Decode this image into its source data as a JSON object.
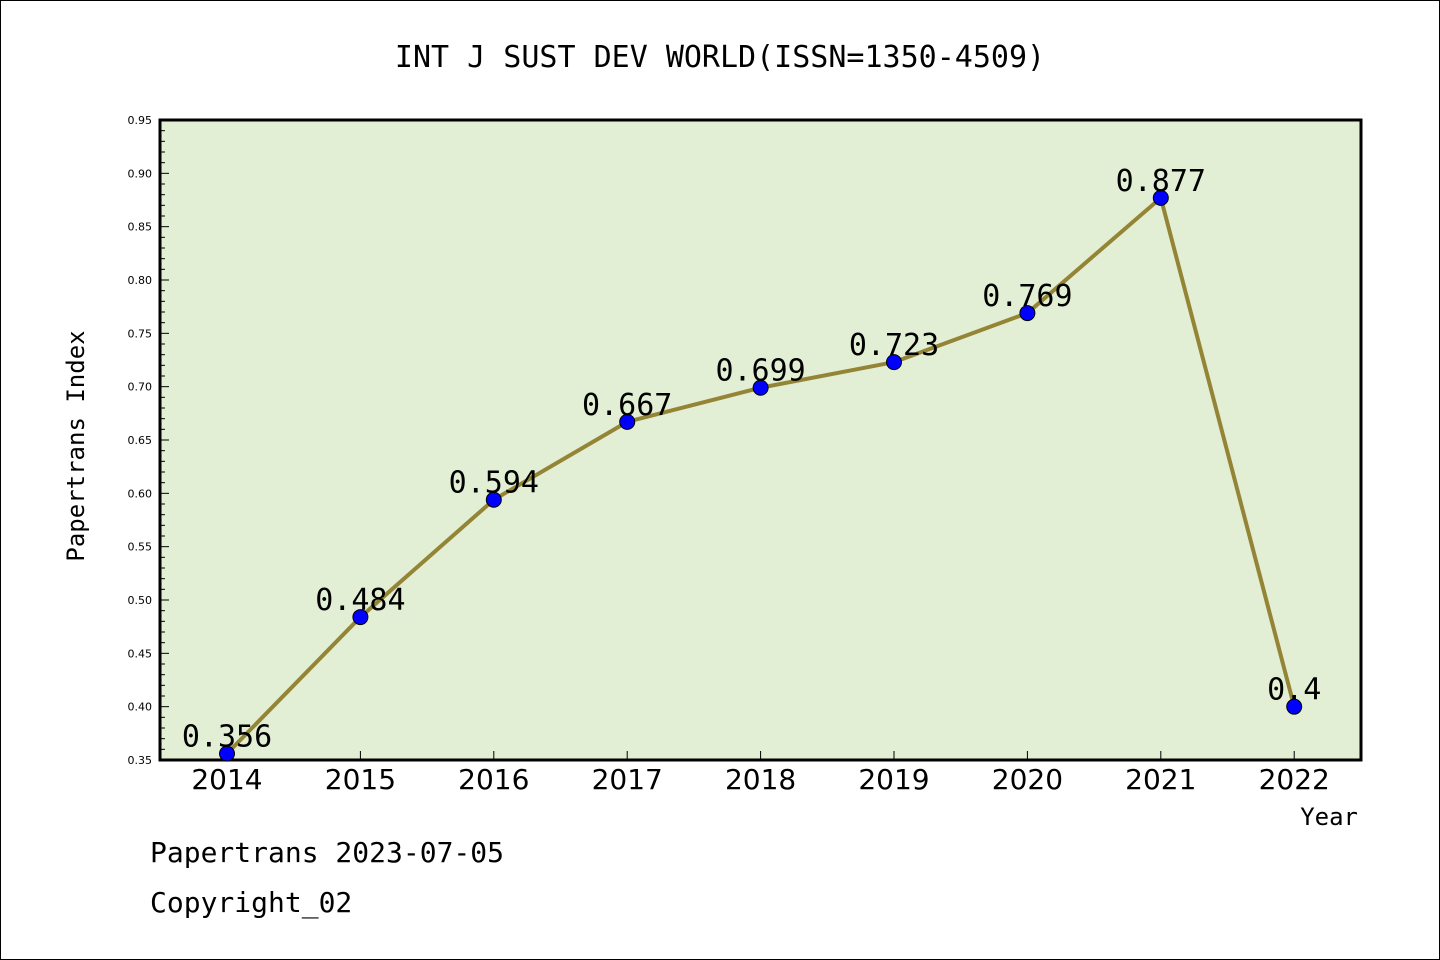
{
  "chart_data": {
    "type": "line",
    "title": "INT J SUST DEV WORLD(ISSN=1350-4509)",
    "xlabel": "Year",
    "ylabel": "Papertrans Index",
    "categories": [
      "2014",
      "2015",
      "2016",
      "2017",
      "2018",
      "2019",
      "2020",
      "2021",
      "2022"
    ],
    "values": [
      0.356,
      0.484,
      0.594,
      0.667,
      0.699,
      0.723,
      0.769,
      0.877,
      0.4
    ],
    "data_labels": [
      "0.356",
      "0.484",
      "0.594",
      "0.667",
      "0.699",
      "0.723",
      "0.769",
      "0.877",
      "0.4"
    ],
    "ylim": [
      0.35,
      0.95
    ],
    "yticks": [
      "0.35",
      "0.40",
      "0.45",
      "0.50",
      "0.55",
      "0.60",
      "0.65",
      "0.70",
      "0.75",
      "0.80",
      "0.85",
      "0.90",
      "0.95"
    ],
    "grid": false,
    "colors": {
      "plot_bg": "#e2efd4",
      "line": "#948536",
      "marker": "#0000ff"
    }
  },
  "footer": {
    "line1": "Papertrans 2023-07-05",
    "line2": "Copyright_02"
  }
}
